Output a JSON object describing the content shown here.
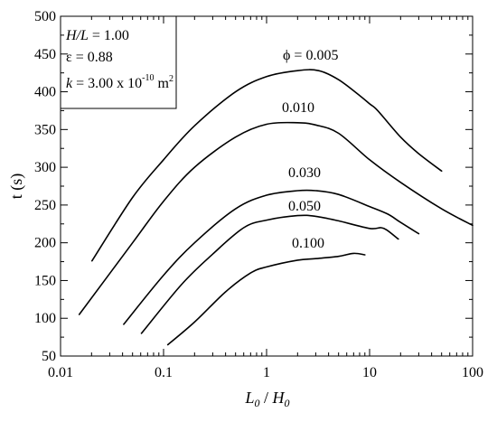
{
  "chart_data": {
    "type": "line",
    "xscale": "log",
    "xlim": [
      0.01,
      100
    ],
    "ylim": [
      50,
      500
    ],
    "x_ticks": [
      "0.01",
      "0.1",
      "1",
      "10",
      "100"
    ],
    "y_ticks": [
      "50",
      "100",
      "150",
      "200",
      "250",
      "300",
      "350",
      "400",
      "450",
      "500"
    ],
    "xlabel_parts": {
      "L": "L",
      "L_sub": "0",
      "sep": " / ",
      "H": "H",
      "H_sub": "0"
    },
    "ylabel": "t (s)",
    "info_box": {
      "line1": {
        "var": "H/L",
        "rest": " = 1.00"
      },
      "line2": {
        "var": "ε",
        "rest": " = 0.88"
      },
      "line3": {
        "var": "k",
        "rest": " = 3.00 x 10",
        "exp": "-10",
        "after": " m",
        "unit_exp": "2"
      }
    },
    "series": [
      {
        "label": "ϕ = 0.005",
        "points": [
          [
            0.0202,
            176
          ],
          [
            0.05,
            260
          ],
          [
            0.1,
            310
          ],
          [
            0.2,
            355
          ],
          [
            0.5,
            400
          ],
          [
            1,
            420
          ],
          [
            2,
            428
          ],
          [
            3.2,
            428
          ],
          [
            5,
            416
          ],
          [
            8,
            395
          ],
          [
            10,
            384
          ],
          [
            12,
            375
          ],
          [
            20,
            340
          ],
          [
            30,
            318
          ],
          [
            50,
            295
          ]
        ]
      },
      {
        "label": "0.010",
        "points": [
          [
            0.0152,
            105
          ],
          [
            0.05,
            200
          ],
          [
            0.1,
            255
          ],
          [
            0.2,
            300
          ],
          [
            0.5,
            340
          ],
          [
            1,
            357
          ],
          [
            2,
            359
          ],
          [
            3,
            356
          ],
          [
            5,
            345
          ],
          [
            10,
            310
          ],
          [
            20,
            280
          ],
          [
            50,
            245
          ],
          [
            100,
            223
          ]
        ]
      },
      {
        "label": "0.030",
        "points": [
          [
            0.041,
            92
          ],
          [
            0.1,
            157
          ],
          [
            0.2,
            200
          ],
          [
            0.5,
            245
          ],
          [
            1,
            263
          ],
          [
            2,
            269
          ],
          [
            3,
            269
          ],
          [
            5,
            264
          ],
          [
            10,
            248
          ],
          [
            15,
            238
          ],
          [
            20,
            227
          ],
          [
            30,
            212
          ]
        ]
      },
      {
        "label": "0.050",
        "points": [
          [
            0.061,
            80
          ],
          [
            0.15,
            145
          ],
          [
            0.3,
            185
          ],
          [
            0.6,
            220
          ],
          [
            1,
            230
          ],
          [
            2,
            236
          ],
          [
            3,
            235
          ],
          [
            5,
            229
          ],
          [
            10,
            219
          ],
          [
            13,
            220
          ],
          [
            15,
            216
          ],
          [
            19,
            205
          ]
        ]
      },
      {
        "label": "0.100",
        "points": [
          [
            0.11,
            65
          ],
          [
            0.2,
            95
          ],
          [
            0.4,
            135
          ],
          [
            0.7,
            160
          ],
          [
            1,
            168
          ],
          [
            2,
            177
          ],
          [
            3,
            179
          ],
          [
            5,
            182
          ],
          [
            7,
            186
          ],
          [
            9,
            184
          ]
        ]
      }
    ]
  }
}
